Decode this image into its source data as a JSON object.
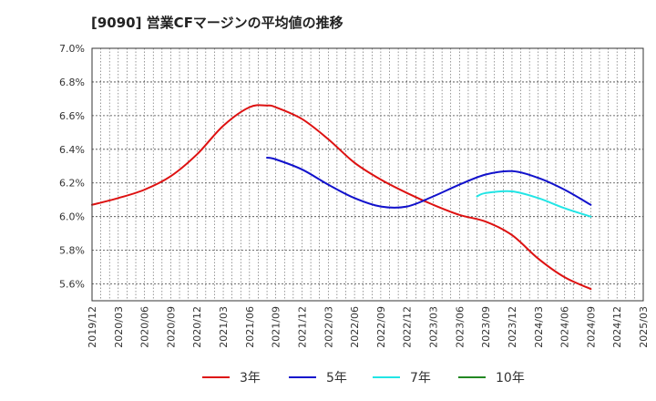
{
  "chart_data": {
    "type": "line",
    "title": "[9090]  営業CFマージンの平均値の推移",
    "xlabel": "",
    "ylabel": "",
    "ylim": [
      5.5,
      7.0
    ],
    "xlim": [
      "2019-12",
      "2025-03"
    ],
    "y_ticks": [
      "7.0%",
      "6.8%",
      "6.6%",
      "6.4%",
      "6.2%",
      "6.0%",
      "5.8%",
      "5.6%"
    ],
    "y_tick_values": [
      7.0,
      6.8,
      6.6,
      6.4,
      6.2,
      6.0,
      5.8,
      5.6
    ],
    "x_ticks": [
      "2019/12",
      "2020/03",
      "2020/06",
      "2020/09",
      "2020/12",
      "2021/03",
      "2021/06",
      "2021/09",
      "2021/12",
      "2022/03",
      "2022/06",
      "2022/09",
      "2022/12",
      "2023/03",
      "2023/06",
      "2023/09",
      "2023/12",
      "2024/03",
      "2024/06",
      "2024/09",
      "2024/12",
      "2025/03"
    ],
    "grid": true,
    "legend_position": "bottom",
    "series": [
      {
        "name": "3年",
        "color": "#dd1111",
        "points": [
          [
            "2019-12",
            6.07
          ],
          [
            "2020-03",
            6.11
          ],
          [
            "2020-06",
            6.16
          ],
          [
            "2020-09",
            6.24
          ],
          [
            "2020-12",
            6.37
          ],
          [
            "2021-03",
            6.54
          ],
          [
            "2021-06",
            6.65
          ],
          [
            "2021-08",
            6.66
          ],
          [
            "2021-09",
            6.65
          ],
          [
            "2021-12",
            6.58
          ],
          [
            "2022-03",
            6.46
          ],
          [
            "2022-06",
            6.32
          ],
          [
            "2022-09",
            6.22
          ],
          [
            "2022-12",
            6.14
          ],
          [
            "2023-03",
            6.07
          ],
          [
            "2023-06",
            6.01
          ],
          [
            "2023-09",
            5.97
          ],
          [
            "2023-12",
            5.89
          ],
          [
            "2024-03",
            5.75
          ],
          [
            "2024-06",
            5.64
          ],
          [
            "2024-09",
            5.57
          ]
        ]
      },
      {
        "name": "5年",
        "color": "#1111cc",
        "points": [
          [
            "2021-08",
            6.35
          ],
          [
            "2021-09",
            6.34
          ],
          [
            "2021-12",
            6.28
          ],
          [
            "2022-03",
            6.19
          ],
          [
            "2022-06",
            6.11
          ],
          [
            "2022-09",
            6.06
          ],
          [
            "2022-12",
            6.06
          ],
          [
            "2023-03",
            6.12
          ],
          [
            "2023-06",
            6.19
          ],
          [
            "2023-09",
            6.25
          ],
          [
            "2023-12",
            6.27
          ],
          [
            "2024-03",
            6.23
          ],
          [
            "2024-06",
            6.16
          ],
          [
            "2024-09",
            6.07
          ]
        ]
      },
      {
        "name": "7年",
        "color": "#22e5e5",
        "points": [
          [
            "2023-08",
            6.12
          ],
          [
            "2023-09",
            6.14
          ],
          [
            "2023-12",
            6.15
          ],
          [
            "2024-03",
            6.11
          ],
          [
            "2024-06",
            6.05
          ],
          [
            "2024-09",
            6.0
          ]
        ]
      },
      {
        "name": "10年",
        "color": "#228822",
        "points": []
      }
    ]
  }
}
